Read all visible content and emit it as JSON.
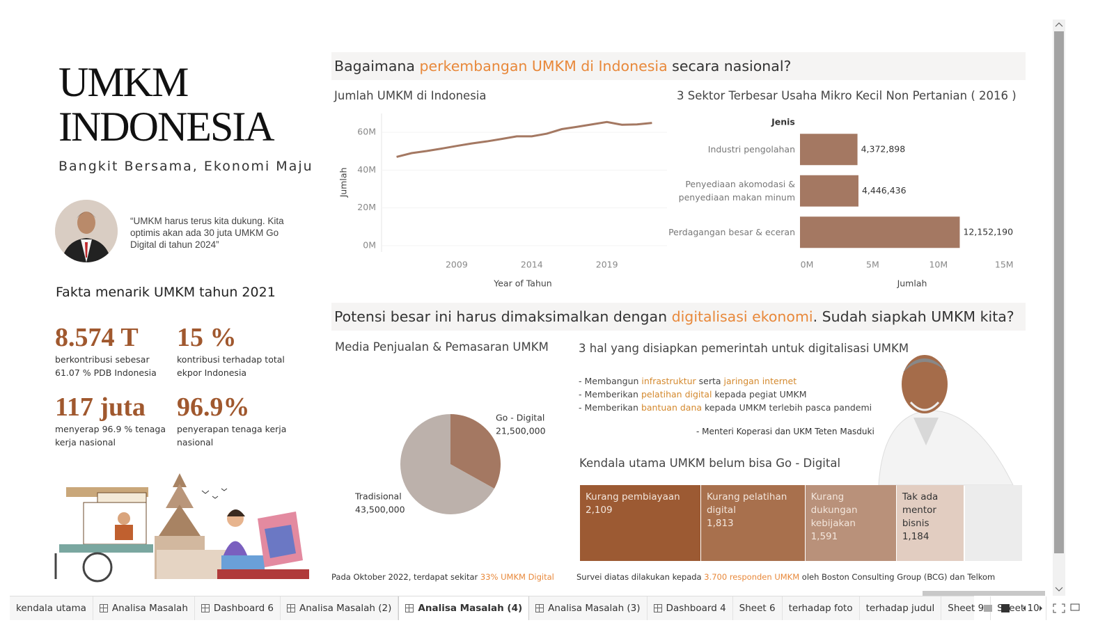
{
  "header": {
    "title_line1": "UMKM",
    "title_line2": "INDONESIA",
    "subtitle": "Bangkit Bersama, Ekonomi Maju",
    "quote": "“UMKM harus terus kita dukung. Kita optimis akan ada 30 juta UMKM Go Digital di tahun 2024”"
  },
  "facts": {
    "heading": "Fakta menarik UMKM tahun 2021",
    "items": [
      {
        "value": "8.574 T",
        "text": "berkontribusi sebesar 61.07 % PDB Indonesia"
      },
      {
        "value": "15 %",
        "text": "kontribusi terhadap total ekpor Indonesia"
      },
      {
        "value": "117 juta",
        "text": "menyerap 96.9 % tenaga kerja nasional"
      },
      {
        "value": "96.9%",
        "text": "penyerapan tenaga kerja nasional"
      }
    ]
  },
  "section1": [
    "Bagaimana ",
    {
      "text": "perkembangan UMKM di Indonesia",
      "color": "#e8883a"
    },
    " secara nasional?"
  ],
  "section2": [
    "Potensi besar ini harus dimaksimalkan dengan ",
    {
      "text": "digitalisasi ekonomi",
      "color": "#e8883a"
    },
    ". Sudah siapkah UMKM kita?"
  ],
  "chart_data": [
    {
      "type": "line",
      "title": "Jumlah UMKM di Indonesia",
      "y_label": "Jumlah",
      "x_label": "Year of Tahun",
      "color": "#a47862",
      "x": [
        2005,
        2006,
        2007,
        2008,
        2009,
        2010,
        2011,
        2012,
        2013,
        2014,
        2015,
        2016,
        2017,
        2018,
        2019,
        2020,
        2021,
        2022
      ],
      "values": [
        47000000,
        49000000,
        50100000,
        51400000,
        52800000,
        54100000,
        55200000,
        56500000,
        57900000,
        57900000,
        59300000,
        61700000,
        62900000,
        64200000,
        65500000,
        64000000,
        64200000,
        65000000
      ],
      "xlim": [
        2004,
        2023
      ],
      "xticks": [
        2009,
        2014,
        2019
      ],
      "ylim": [
        0,
        70000000
      ],
      "yticks": [
        {
          "value": 0,
          "label": "0M"
        },
        {
          "value": 20000000,
          "label": "20M"
        },
        {
          "value": 40000000,
          "label": "40M"
        },
        {
          "value": 60000000,
          "label": "60M"
        }
      ],
      "grid": true
    },
    {
      "type": "bar",
      "orientation": "horizontal",
      "title": "3 Sektor Terbesar Usaha Mikro Kecil Non Pertanian ( 2016 )",
      "category_header": "Jenis",
      "x_label": "Jumlah",
      "color": "#a47862",
      "categories": [
        "Industri pengolahan",
        "Penyediaan akomodasi & penyediaan makan minum",
        "Perdagangan besar & eceran"
      ],
      "values": [
        4372898,
        4446436,
        12152190
      ],
      "value_labels": [
        "4,372,898",
        "4,446,436",
        "12,152,190"
      ],
      "xlim": [
        0,
        17000000
      ],
      "xticks": [
        {
          "value": 0,
          "label": "0M"
        },
        {
          "value": 5000000,
          "label": "5M"
        },
        {
          "value": 10000000,
          "label": "10M"
        },
        {
          "value": 15000000,
          "label": "15M"
        }
      ]
    },
    {
      "type": "pie",
      "title": "Media Penjualan & Pemasaran UMKM",
      "categories": [
        "Go - Digital",
        "Tradisional"
      ],
      "values": [
        21500000,
        43500000
      ],
      "value_labels": [
        "21,500,000",
        "43,500,000"
      ],
      "colors": [
        "#a47862",
        "#bcb1ab"
      ]
    },
    {
      "type": "treemap",
      "title": "Kendala utama UMKM belum bisa Go - Digital",
      "categories": [
        "Kurang pembiayaan",
        "Kurang pelatihan digital",
        "Kurang dukungan kebijakan",
        "Tak ada mentor bisnis"
      ],
      "values": [
        2109,
        1813,
        1591,
        1184
      ],
      "value_labels": [
        "2,109",
        "1,813",
        "1,591",
        "1,184"
      ],
      "colors": [
        "#9c5a33",
        "#a8704d",
        "#b9917a",
        "#e2cdc1"
      ]
    }
  ],
  "pie_note": [
    "Pada Oktober 2022, terdapat sekitar ",
    {
      "text": "33% UMKM Digital",
      "color": "#e8883a"
    }
  ],
  "government": {
    "title": "3 hal yang disiapkan pemerintah untuk digitalisasi UMKM",
    "items": [
      [
        "- Membangun ",
        {
          "text": "infrastruktur",
          "color": "#d4892e"
        },
        " serta ",
        {
          "text": "jaringan internet",
          "color": "#d4892e"
        }
      ],
      [
        "- Memberikan ",
        {
          "text": "pelatihan digital",
          "color": "#d4892e"
        },
        " kepada pegiat UMKM"
      ],
      [
        "- Memberikan ",
        {
          "text": "bantuan dana",
          "color": "#d4892e"
        },
        " kepada UMKM terlebih pasca pandemi"
      ]
    ],
    "attribution": "- Menteri Koperasi dan UKM Teten Masduki"
  },
  "survey_note": [
    "Survei diatas dilakukan kepada ",
    {
      "text": "3.700 responden UMKM",
      "color": "#e8883a"
    },
    " oleh Boston Consulting Group (BCG) dan Telkom"
  ],
  "tabs": [
    {
      "label": "kendala utama"
    },
    {
      "label": "Analisa Masalah",
      "dashboard": true
    },
    {
      "label": "Dashboard 6",
      "dashboard": true
    },
    {
      "label": "Analisa Masalah (2)",
      "dashboard": true
    },
    {
      "label": "Analisa Masalah (4)",
      "dashboard": true,
      "active": true
    },
    {
      "label": "Analisa Masalah (3)",
      "dashboard": true
    },
    {
      "label": "Dashboard 4",
      "dashboard": true
    },
    {
      "label": "Sheet 6"
    },
    {
      "label": "terhadap foto"
    },
    {
      "label": "terhadap judul"
    },
    {
      "label": "Sheet 9"
    },
    {
      "label": "Sheet 10"
    }
  ]
}
